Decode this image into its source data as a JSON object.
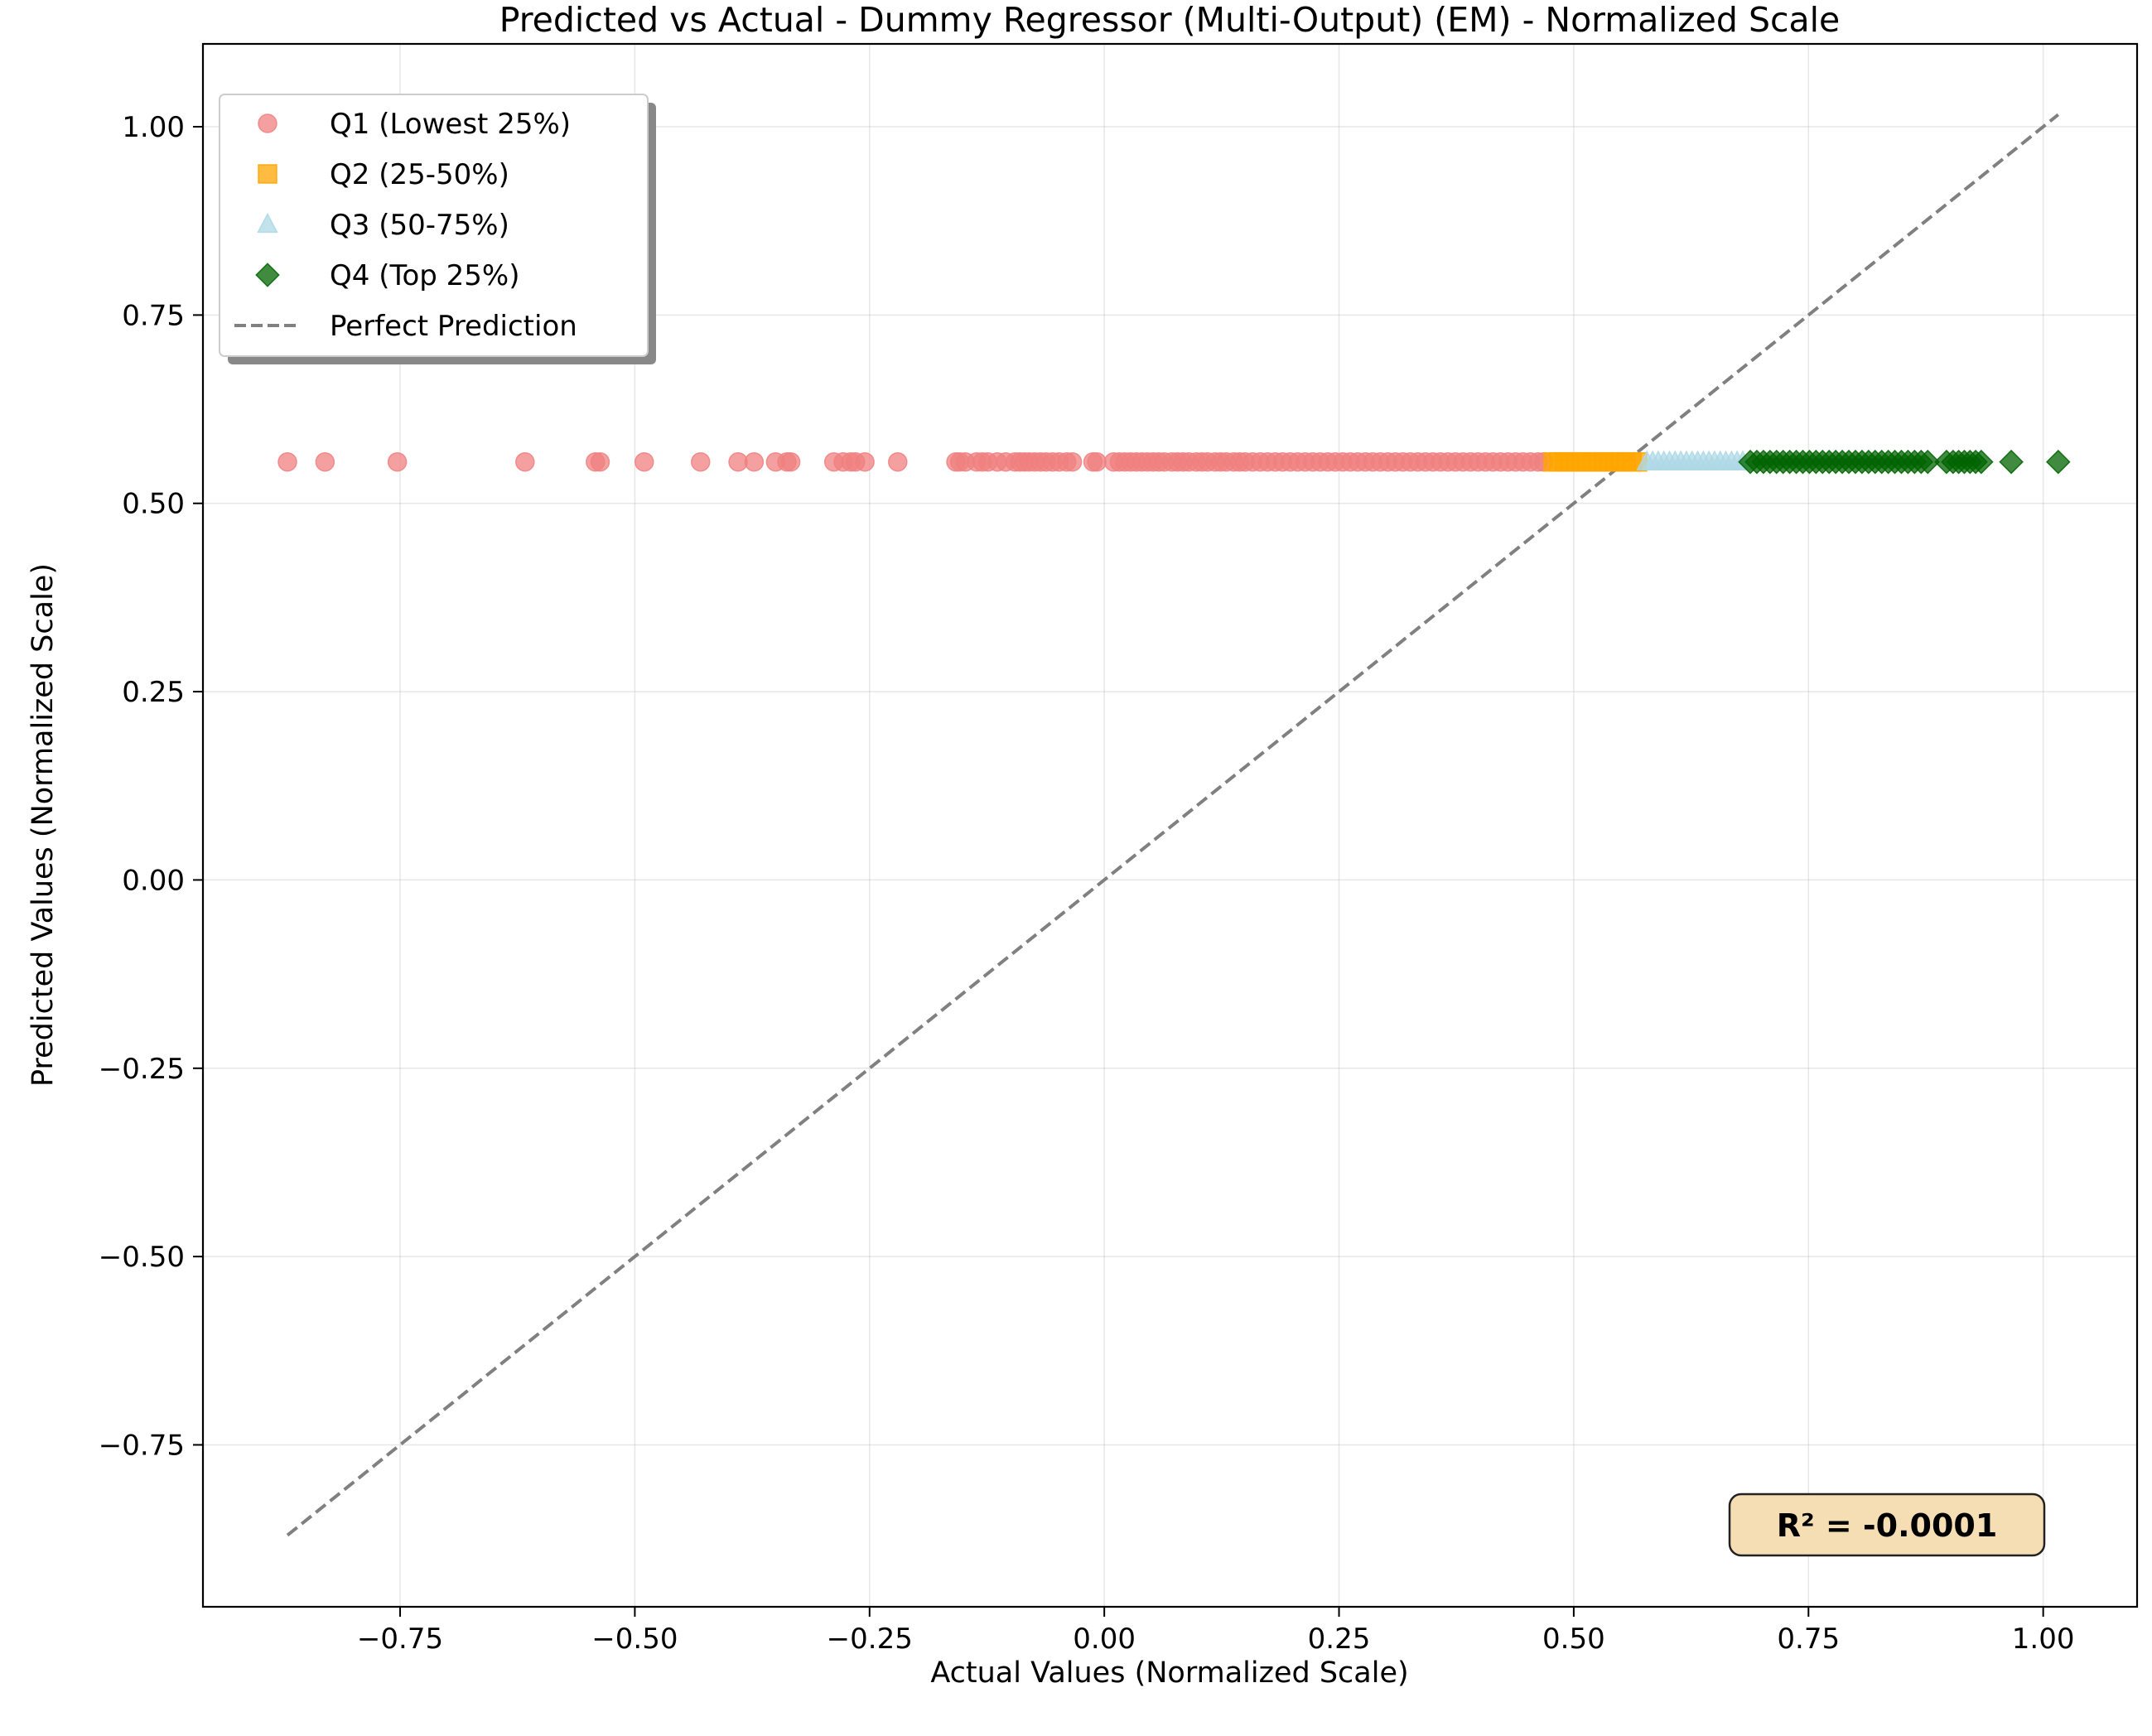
{
  "chart_data": {
    "type": "scatter",
    "title": "Predicted vs Actual - Dummy Regressor (Multi-Output) (EM) - Normalized Scale",
    "xlabel": "Actual Values (Normalized Scale)",
    "ylabel": "Predicted Values (Normalized Scale)",
    "xlim": [
      -0.96,
      1.1
    ],
    "ylim": [
      -0.965,
      1.11
    ],
    "x_ticks": [
      -0.75,
      -0.5,
      -0.25,
      0.0,
      0.25,
      0.5,
      0.75,
      1.0
    ],
    "x_tick_labels": [
      "−0.75",
      "−0.50",
      "−0.25",
      "0.00",
      "0.25",
      "0.50",
      "0.75",
      "1.00"
    ],
    "y_ticks": [
      -0.75,
      -0.5,
      -0.25,
      0.0,
      0.25,
      0.5,
      0.75,
      1.0
    ],
    "y_tick_labels": [
      "−0.75",
      "−0.50",
      "−0.25",
      "0.00",
      "0.25",
      "0.50",
      "0.75",
      "1.00"
    ],
    "grid": true,
    "legend_position": "top-left",
    "predicted_constant": 0.555,
    "series": [
      {
        "name": "Q1 (Lowest 25%)",
        "marker": "circle",
        "color": "#f08080",
        "x": [
          -0.87,
          -0.83,
          -0.753,
          -0.617,
          -0.542,
          -0.537,
          -0.49,
          -0.43,
          -0.39,
          -0.373,
          -0.35,
          -0.338,
          -0.334,
          -0.288,
          -0.278,
          -0.27,
          -0.265,
          -0.255,
          -0.22,
          -0.158,
          -0.154,
          -0.148,
          -0.136,
          -0.13,
          -0.124,
          -0.114,
          -0.105,
          -0.095,
          -0.09,
          -0.085,
          -0.08,
          -0.074,
          -0.068,
          -0.062,
          -0.055,
          -0.048,
          -0.04,
          -0.034,
          -0.012,
          -0.008,
          0.01,
          0.016,
          0.022,
          0.028,
          0.034,
          0.04,
          0.046,
          0.052,
          0.058,
          0.064,
          0.072,
          0.078,
          0.084,
          0.09,
          0.098,
          0.104,
          0.11,
          0.118,
          0.124,
          0.13,
          0.138,
          0.144,
          0.15,
          0.158,
          0.166,
          0.174,
          0.182,
          0.19,
          0.198,
          0.206,
          0.214,
          0.222,
          0.23,
          0.238,
          0.246,
          0.254,
          0.262,
          0.27,
          0.278,
          0.286,
          0.294,
          0.302,
          0.31,
          0.318,
          0.326,
          0.334,
          0.342,
          0.35,
          0.358,
          0.366,
          0.374,
          0.382,
          0.39,
          0.398,
          0.406,
          0.414,
          0.422,
          0.43,
          0.438,
          0.446,
          0.454,
          0.462,
          0.468
        ]
      },
      {
        "name": "Q2 (25-50%)",
        "marker": "square",
        "color": "#ffa500",
        "x": [
          0.478,
          0.484,
          0.49,
          0.496,
          0.502,
          0.508,
          0.514,
          0.52,
          0.526,
          0.532,
          0.538,
          0.544,
          0.55,
          0.556,
          0.562,
          0.568
        ]
      },
      {
        "name": "Q3 (50-75%)",
        "marker": "triangle",
        "color": "#add8e6",
        "x": [
          0.578,
          0.584,
          0.59,
          0.596,
          0.602,
          0.608,
          0.614,
          0.62,
          0.626,
          0.632,
          0.638,
          0.644,
          0.65,
          0.656,
          0.662,
          0.668,
          0.674,
          0.68
        ]
      },
      {
        "name": "Q4 (Top 25%)",
        "marker": "diamond",
        "color": "#006400",
        "x": [
          0.688,
          0.695,
          0.702,
          0.709,
          0.716,
          0.723,
          0.73,
          0.737,
          0.744,
          0.751,
          0.758,
          0.765,
          0.772,
          0.779,
          0.786,
          0.793,
          0.8,
          0.807,
          0.814,
          0.821,
          0.828,
          0.835,
          0.842,
          0.849,
          0.856,
          0.863,
          0.87,
          0.877,
          0.897,
          0.904,
          0.91,
          0.916,
          0.922,
          0.928,
          0.934,
          0.966,
          1.016
        ]
      }
    ],
    "perfect_line": {
      "name": "Perfect Prediction",
      "x": [
        -0.87,
        1.016
      ],
      "y": [
        -0.87,
        1.016
      ],
      "color": "#808080"
    },
    "annotation": {
      "text": "R² = -0.0001",
      "position": "bottom-right"
    }
  }
}
